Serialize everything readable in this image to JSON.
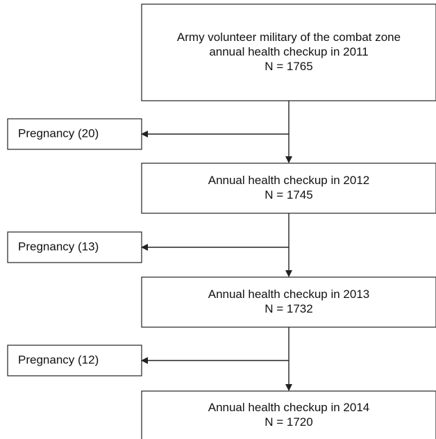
{
  "nodes": [
    {
      "lines": [
        "Army volunteer military of the combat zone",
        "annual health checkup in 2011",
        "N = 1765"
      ]
    },
    {
      "lines": [
        "Annual health checkup in 2012",
        "N = 1745"
      ]
    },
    {
      "lines": [
        "Annual health checkup in 2013",
        "N = 1732"
      ]
    },
    {
      "lines": [
        "Annual health checkup in 2014",
        "N = 1720"
      ]
    }
  ],
  "exclusions": [
    {
      "label": "Pregnancy (20)"
    },
    {
      "label": "Pregnancy (13)"
    },
    {
      "label": "Pregnancy (12)"
    }
  ]
}
